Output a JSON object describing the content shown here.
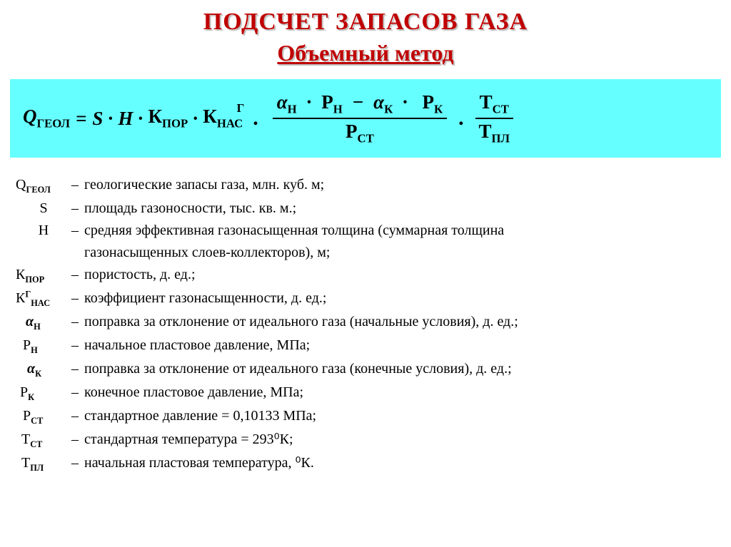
{
  "colors": {
    "background": "#ffffff",
    "title_color": "#c00000",
    "title_shadow": "#bfbfbf",
    "formula_bg": "#66ffff",
    "text_color": "#000000"
  },
  "typography": {
    "title_fontsize": 34,
    "subtitle_fontsize": 32,
    "formula_fontsize": 27,
    "body_fontsize": 20,
    "font_family": "Times New Roman"
  },
  "title": "ПОДСЧЕТ  ЗАПАСОВ  ГАЗА",
  "subtitle": "Объемный метод",
  "formula": {
    "Q_label": "Q",
    "Q_sub": "ГЕОЛ",
    "eq": "=",
    "S": "S",
    "H": "H",
    "K1": "К",
    "K1_sub": "ПОР",
    "K2": "К",
    "K2_sub": "НАС",
    "K2_sup": "Г",
    "dot": "·",
    "bigdot": ".",
    "alpha_n": "α",
    "alpha_n_sub": "Н",
    "P_n": "Р",
    "P_n_sub": "Н",
    "minus": "−",
    "alpha_k": "α",
    "alpha_k_sub": "К",
    "P_k": "Р",
    "P_k_sub": "К",
    "P_st": "Р",
    "P_st_sub": "СТ",
    "T_st": "Т",
    "T_st_sub": "СТ",
    "T_pl": "Т",
    "T_pl_sub": "ПЛ"
  },
  "defs": [
    {
      "sym_html": "Q<sub>ГЕОЛ</sub>",
      "text": "геологические запасы газа, млн. куб. м;"
    },
    {
      "sym_html": "S",
      "text": "площадь газоносности, тыс. кв. м.;",
      "center_sym": true
    },
    {
      "sym_html": "H",
      "text": "средняя эффективная газонасыщенная толщина  (суммарная толщина",
      "center_sym": true
    },
    {
      "cont": true,
      "text": "газонасыщенных слоев-коллекторов),  м;"
    },
    {
      "sym_html": "К<sub>ПОР</sub>",
      "text": "пористость, д. ед.;"
    },
    {
      "sym_html": "К<sup>Г</sup><sub>НАС</sub>",
      "text": "коэффициент газонасыщенности, д. ед.;"
    },
    {
      "sym_html": "<span class='it'>α</span><sub>Н</sub>",
      "text": "поправка за отклонение от идеального газа (начальные условия), д.  ед.;",
      "indent": 14
    },
    {
      "sym_html": "Р<sub>Н</sub>",
      "text": "начальное пластовое давление,  МПа;",
      "indent": 10
    },
    {
      "sym_html": "<span class='it'>α</span><sub>К</sub>",
      "text": "поправка за отклонение от идеального газа (конечные условия), д.  ед.;",
      "indent": 16
    },
    {
      "sym_html": "Р<sub>К</sub>",
      "text": "конечное  пластовое давление,  МПа;",
      "indent": 6
    },
    {
      "sym_html": "Р<sub>СТ</sub>",
      "text": "стандартное давление = 0,10133 МПа;",
      "indent": 10
    },
    {
      "sym_html": "Т<sub>СТ</sub>",
      "text": "стандартная температура =  293⁰К;",
      "indent": 8
    },
    {
      "sym_html": "Т<sub>ПЛ</sub>",
      "text": "начальная пластовая температура,  ⁰К.",
      "indent": 8
    }
  ]
}
